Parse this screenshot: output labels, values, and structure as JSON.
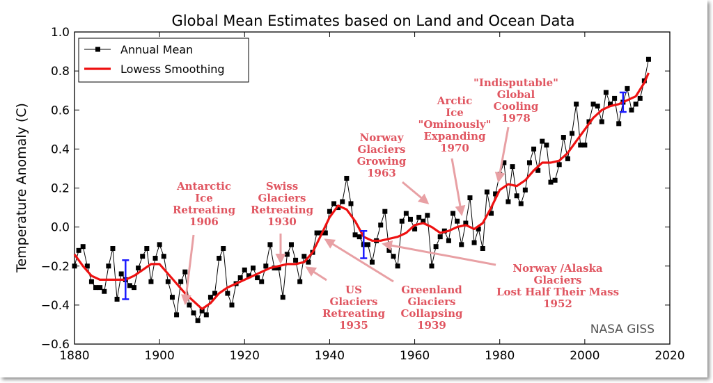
{
  "chart_data": {
    "type": "line",
    "title": "Global Mean Estimates based on Land and Ocean Data",
    "xlabel": "",
    "ylabel": "Temperature Anomaly (C)",
    "xlim": [
      1880,
      2020
    ],
    "ylim": [
      -0.6,
      1.0
    ],
    "xticks": [
      "1880",
      "1900",
      "1920",
      "1940",
      "1960",
      "1980",
      "2000",
      "2020"
    ],
    "yticks": [
      "1.0",
      "0.8",
      "0.6",
      "0.4",
      "0.2",
      "0.0",
      "−0.2",
      "−0.4",
      "−0.6"
    ],
    "legend": {
      "position": "top-left"
    },
    "credit": "NASA GISS",
    "series": [
      {
        "name": "Annual Mean",
        "color": "#000000",
        "marker": "square",
        "x": [
          1880,
          1881,
          1882,
          1883,
          1884,
          1885,
          1886,
          1887,
          1888,
          1889,
          1890,
          1891,
          1892,
          1893,
          1894,
          1895,
          1896,
          1897,
          1898,
          1899,
          1900,
          1901,
          1902,
          1903,
          1904,
          1905,
          1906,
          1907,
          1908,
          1909,
          1910,
          1911,
          1912,
          1913,
          1914,
          1915,
          1916,
          1917,
          1918,
          1919,
          1920,
          1921,
          1922,
          1923,
          1924,
          1925,
          1926,
          1927,
          1928,
          1929,
          1930,
          1931,
          1932,
          1933,
          1934,
          1935,
          1936,
          1937,
          1938,
          1939,
          1940,
          1941,
          1942,
          1943,
          1944,
          1945,
          1946,
          1947,
          1948,
          1949,
          1950,
          1951,
          1952,
          1953,
          1954,
          1955,
          1956,
          1957,
          1958,
          1959,
          1960,
          1961,
          1962,
          1963,
          1964,
          1965,
          1966,
          1967,
          1968,
          1969,
          1970,
          1971,
          1972,
          1973,
          1974,
          1975,
          1976,
          1977,
          1978,
          1979,
          1980,
          1981,
          1982,
          1983,
          1984,
          1985,
          1986,
          1987,
          1988,
          1989,
          1990,
          1991,
          1992,
          1993,
          1994,
          1995,
          1996,
          1997,
          1998,
          1999,
          2000,
          2001,
          2002,
          2003,
          2004,
          2005,
          2006,
          2007,
          2008,
          2009,
          2010,
          2011,
          2012,
          2013,
          2014,
          2015
        ],
        "values": [
          -0.2,
          -0.12,
          -0.1,
          -0.2,
          -0.28,
          -0.31,
          -0.31,
          -0.33,
          -0.2,
          -0.11,
          -0.37,
          -0.24,
          -0.27,
          -0.3,
          -0.31,
          -0.21,
          -0.15,
          -0.11,
          -0.28,
          -0.16,
          -0.09,
          -0.15,
          -0.28,
          -0.36,
          -0.45,
          -0.28,
          -0.23,
          -0.4,
          -0.44,
          -0.48,
          -0.43,
          -0.45,
          -0.36,
          -0.34,
          -0.16,
          -0.11,
          -0.34,
          -0.4,
          -0.29,
          -0.26,
          -0.22,
          -0.25,
          -0.21,
          -0.26,
          -0.28,
          -0.2,
          -0.09,
          -0.21,
          -0.21,
          -0.36,
          -0.14,
          -0.09,
          -0.17,
          -0.28,
          -0.15,
          -0.18,
          -0.13,
          -0.03,
          -0.03,
          -0.03,
          0.08,
          0.12,
          0.1,
          0.13,
          0.25,
          0.12,
          -0.04,
          -0.05,
          -0.09,
          -0.09,
          -0.18,
          -0.07,
          0.01,
          0.08,
          -0.12,
          -0.15,
          -0.2,
          0.03,
          0.07,
          0.04,
          -0.01,
          0.05,
          0.03,
          0.06,
          -0.2,
          -0.1,
          -0.05,
          -0.02,
          -0.07,
          0.07,
          0.03,
          -0.09,
          0.02,
          0.15,
          -0.08,
          -0.01,
          -0.11,
          0.18,
          0.07,
          0.17,
          0.27,
          0.33,
          0.13,
          0.31,
          0.16,
          0.12,
          0.19,
          0.33,
          0.4,
          0.29,
          0.44,
          0.42,
          0.23,
          0.24,
          0.32,
          0.46,
          0.35,
          0.48,
          0.63,
          0.42,
          0.42,
          0.54,
          0.63,
          0.62,
          0.54,
          0.69,
          0.63,
          0.66,
          0.53,
          0.64,
          0.71,
          0.6,
          0.63,
          0.66,
          0.75,
          0.86
        ]
      },
      {
        "name": "Lowess Smoothing",
        "color": "#ee1111",
        "x": [
          1880,
          1882,
          1884,
          1886,
          1888,
          1890,
          1892,
          1894,
          1896,
          1898,
          1900,
          1902,
          1904,
          1906,
          1908,
          1910,
          1912,
          1914,
          1916,
          1918,
          1920,
          1922,
          1924,
          1926,
          1928,
          1930,
          1932,
          1934,
          1936,
          1938,
          1940,
          1942,
          1944,
          1946,
          1948,
          1950,
          1952,
          1954,
          1956,
          1958,
          1960,
          1962,
          1964,
          1966,
          1968,
          1970,
          1972,
          1974,
          1976,
          1978,
          1980,
          1982,
          1984,
          1986,
          1988,
          1990,
          1992,
          1994,
          1996,
          1998,
          2000,
          2002,
          2004,
          2006,
          2008,
          2010,
          2012,
          2014,
          2015
        ],
        "values": [
          -0.14,
          -0.2,
          -0.25,
          -0.27,
          -0.27,
          -0.27,
          -0.27,
          -0.25,
          -0.22,
          -0.19,
          -0.19,
          -0.24,
          -0.29,
          -0.34,
          -0.38,
          -0.42,
          -0.39,
          -0.34,
          -0.31,
          -0.29,
          -0.27,
          -0.25,
          -0.23,
          -0.21,
          -0.2,
          -0.19,
          -0.19,
          -0.18,
          -0.13,
          -0.04,
          0.05,
          0.11,
          0.09,
          0.03,
          -0.05,
          -0.07,
          -0.07,
          -0.06,
          -0.05,
          -0.03,
          0.01,
          0.02,
          0.0,
          -0.03,
          -0.02,
          0.0,
          0.01,
          -0.01,
          0.02,
          0.1,
          0.19,
          0.22,
          0.21,
          0.24,
          0.29,
          0.33,
          0.33,
          0.34,
          0.38,
          0.44,
          0.5,
          0.56,
          0.6,
          0.62,
          0.63,
          0.65,
          0.67,
          0.74,
          0.79
        ]
      }
    ],
    "error_bars": [
      {
        "x": 1892,
        "low": -0.37,
        "high": -0.17
      },
      {
        "x": 1948,
        "low": -0.16,
        "high": -0.02
      },
      {
        "x": 2009,
        "low": 0.59,
        "high": 0.69
      }
    ],
    "annotations": [
      {
        "lines": [
          "Antarctic",
          "Ice",
          "Retreating",
          "1906"
        ]
      },
      {
        "lines": [
          "Swiss",
          "Glaciers",
          "Retreating",
          "1930"
        ]
      },
      {
        "lines": [
          "US",
          "Glaciers",
          "Retreating",
          "1935"
        ]
      },
      {
        "lines": [
          "Greenland",
          "Glaciers",
          "Collapsing",
          "1939"
        ]
      },
      {
        "lines": [
          "Norway",
          "Glaciers",
          "Growing",
          "1963"
        ]
      },
      {
        "lines": [
          "Arctic",
          "Ice",
          "\"Ominously\"",
          "Expanding",
          "1970"
        ]
      },
      {
        "lines": [
          "\"Indisputable\"",
          "Global",
          "Cooling",
          "1978"
        ]
      },
      {
        "lines": [
          "Norway /Alaska",
          "Glaciers",
          "Lost Half Their Mass",
          "1952"
        ]
      }
    ]
  }
}
